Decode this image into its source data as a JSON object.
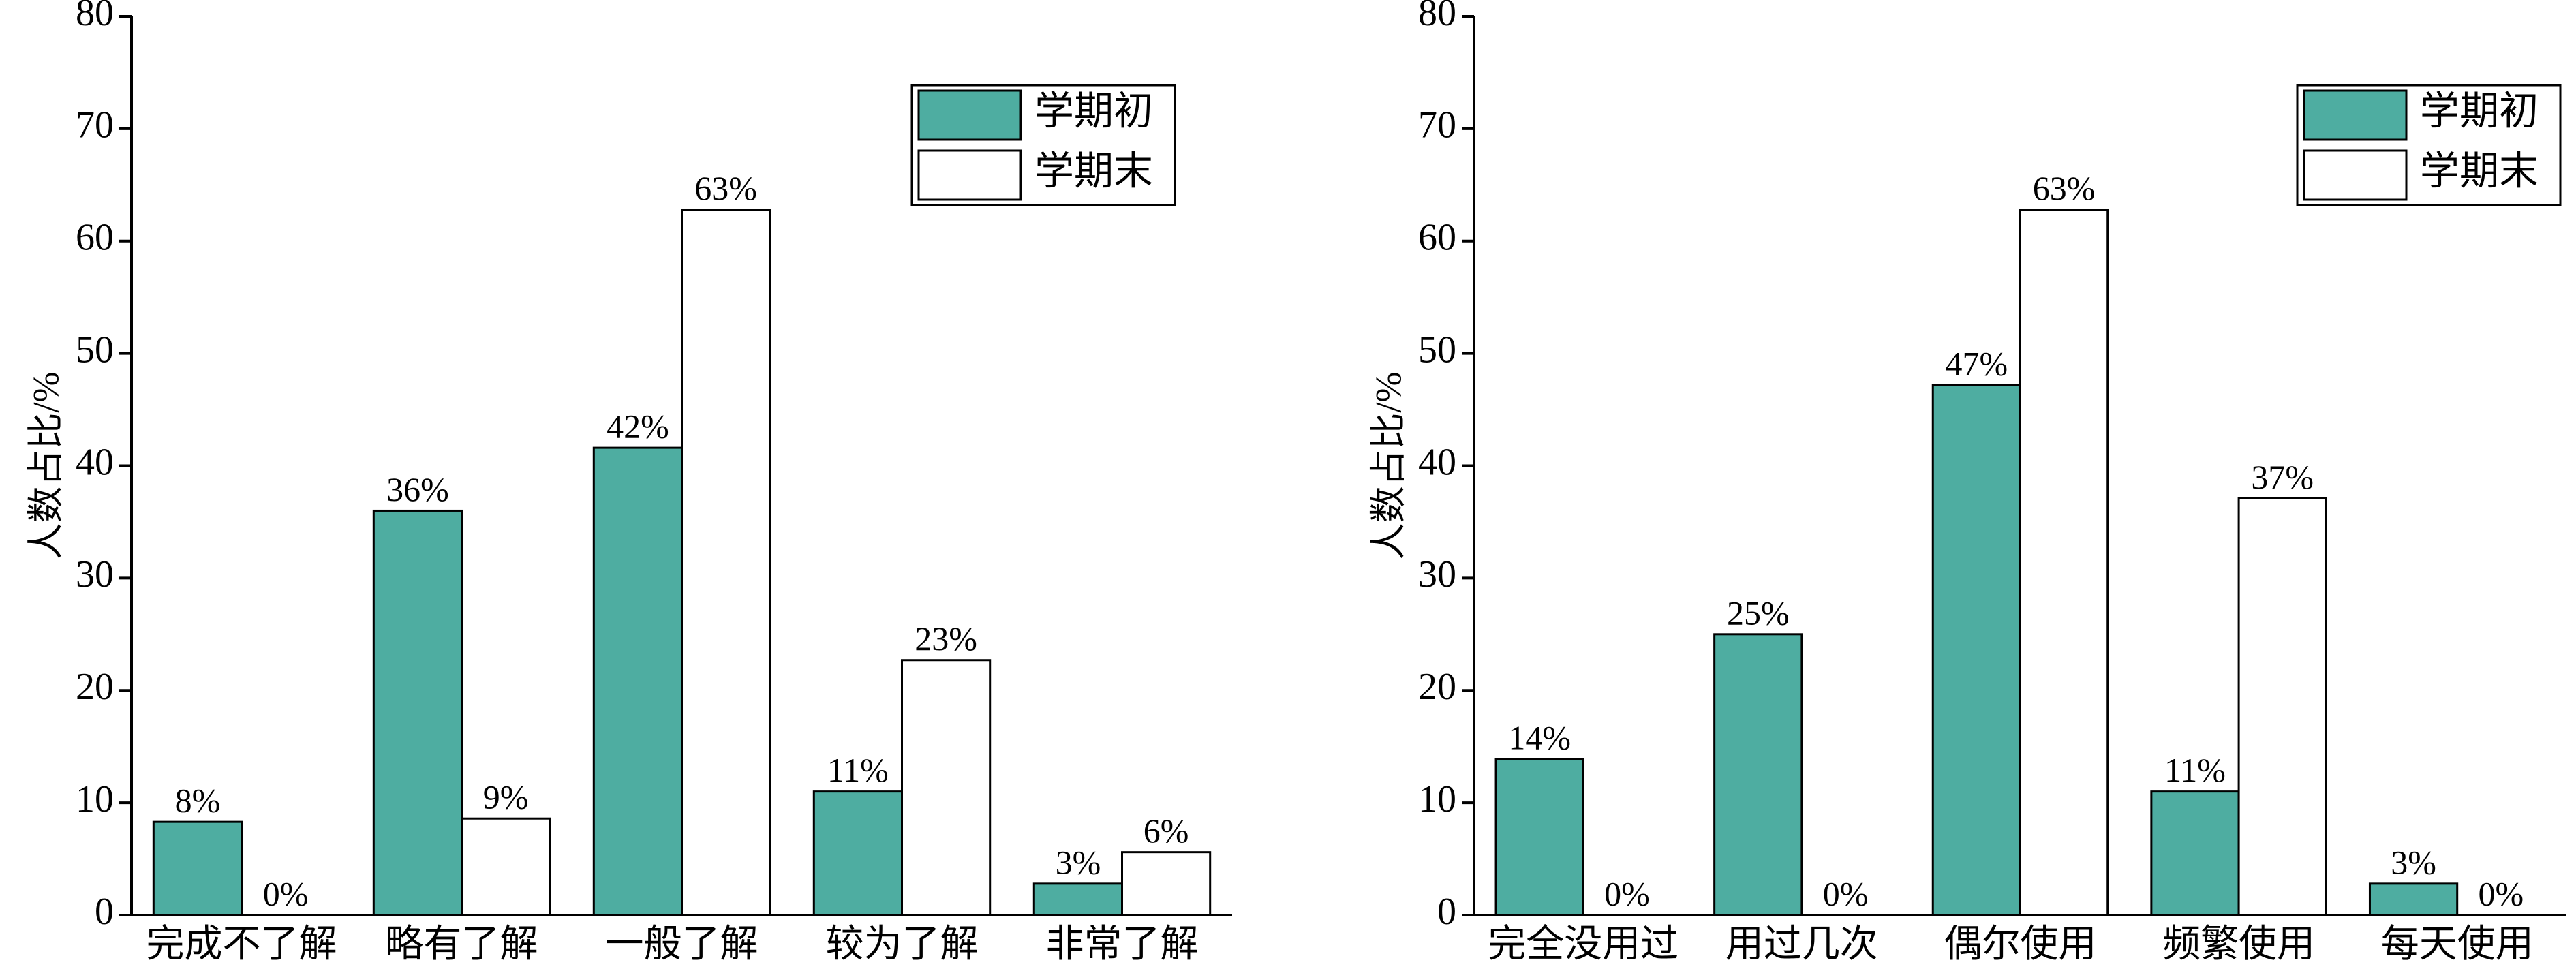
{
  "chart_data": [
    {
      "type": "bar",
      "ylabel": "人数占比/%",
      "categories": [
        "完成不了解",
        "略有了解",
        "一般了解",
        "较为了解",
        "非常了解"
      ],
      "series": [
        {
          "name": "学期初",
          "color": "#4eada1",
          "values": [
            8.3,
            36,
            41.6,
            11,
            2.8
          ],
          "value_labels": [
            "8%",
            "36%",
            "42%",
            "11%",
            "3%"
          ]
        },
        {
          "name": "学期末",
          "color": "#ffffff",
          "values": [
            0,
            8.6,
            62.8,
            22.7,
            5.6
          ],
          "value_labels": [
            "0%",
            "9%",
            "63%",
            "23%",
            "6%"
          ]
        }
      ],
      "ylim": [
        0,
        80
      ],
      "yticks": [
        0,
        10,
        20,
        30,
        40,
        50,
        60,
        70,
        80
      ],
      "legend": "upper right"
    },
    {
      "type": "bar",
      "ylabel": "人数占比/%",
      "categories": [
        "完全没用过",
        "用过几次",
        "偶尔使用",
        "频繁使用",
        "每天使用"
      ],
      "series": [
        {
          "name": "学期初",
          "color": "#4eada1",
          "values": [
            13.9,
            25,
            47.2,
            11,
            2.8
          ],
          "value_labels": [
            "14%",
            "25%",
            "47%",
            "11%",
            "3%"
          ]
        },
        {
          "name": "学期末",
          "color": "#ffffff",
          "values": [
            0,
            0,
            62.8,
            37.1,
            0
          ],
          "value_labels": [
            "0%",
            "0%",
            "63%",
            "37%",
            "0%"
          ]
        }
      ],
      "ylim": [
        0,
        80
      ],
      "yticks": [
        0,
        10,
        20,
        30,
        40,
        50,
        60,
        70,
        80
      ],
      "legend": "upper right"
    }
  ]
}
